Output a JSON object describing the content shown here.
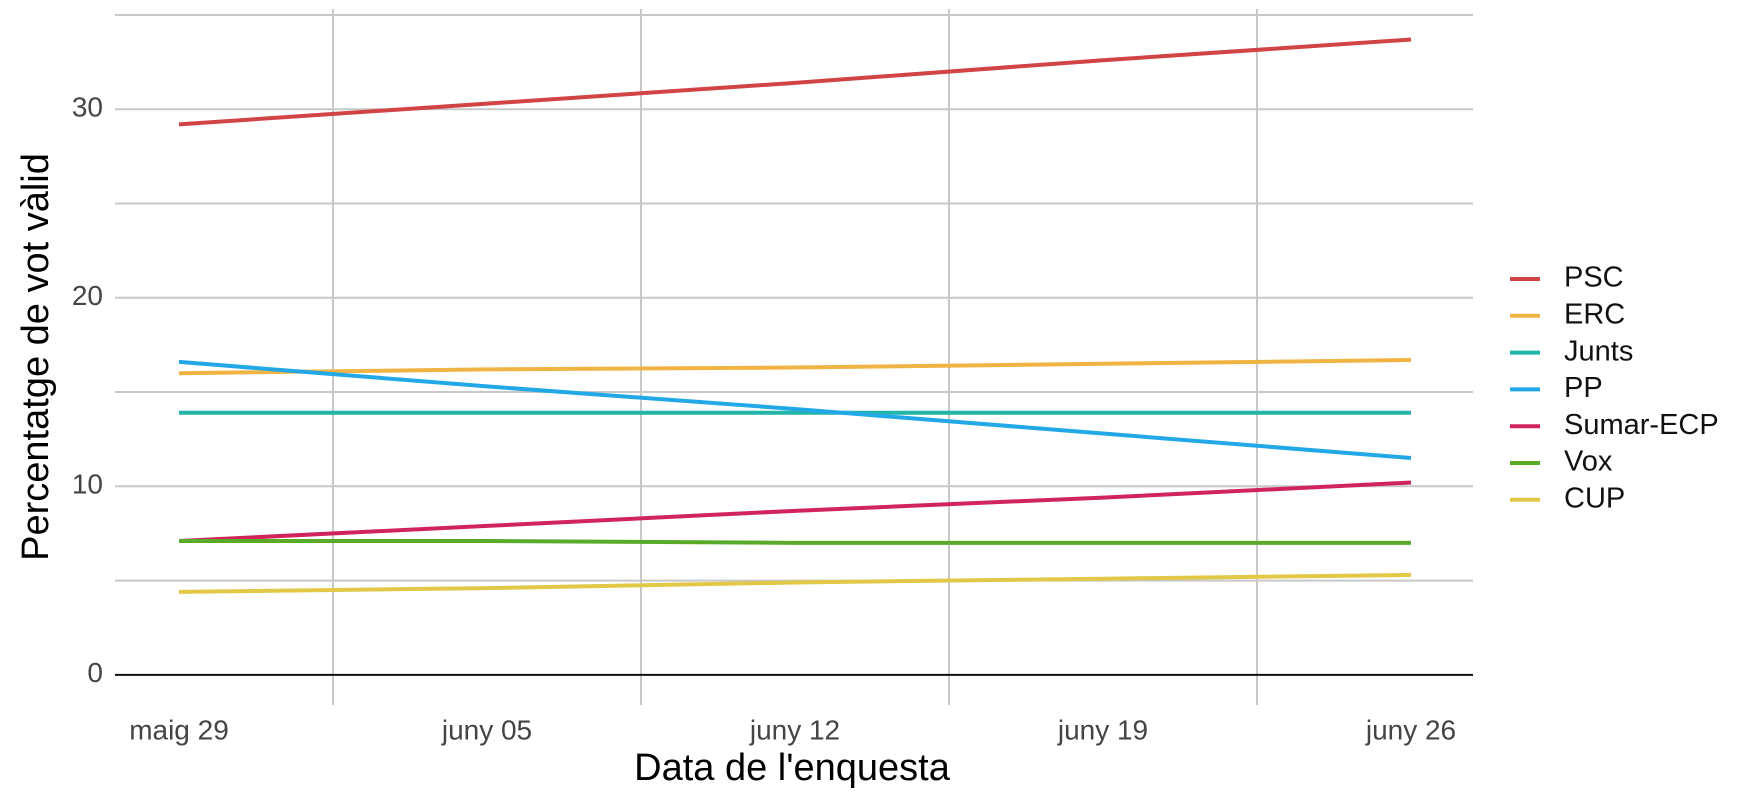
{
  "chart_data": {
    "type": "line",
    "x_label": "Data de l'enquesta",
    "y_label": "Percentatge de vot vàlid",
    "categories": [
      "maig 29",
      "juny 05",
      "juny 12",
      "juny 19",
      "juny 26"
    ],
    "series": [
      {
        "name": "PSC",
        "color": "#d04444",
        "values": [
          29.2,
          30.3,
          31.4,
          32.6,
          33.7
        ]
      },
      {
        "name": "ERC",
        "color": "#f0b444",
        "values": [
          16.0,
          16.2,
          16.3,
          16.5,
          16.7
        ]
      },
      {
        "name": "Junts",
        "color": "#22b4a8",
        "values": [
          13.9,
          13.9,
          13.9,
          13.9,
          13.9
        ]
      },
      {
        "name": "PP",
        "color": "#22a8e6",
        "values": [
          16.6,
          15.3,
          14.1,
          12.8,
          11.5
        ]
      },
      {
        "name": "Sumar-ECP",
        "color": "#d0245a",
        "values": [
          7.1,
          7.9,
          8.7,
          9.4,
          10.2
        ]
      },
      {
        "name": "Vox",
        "color": "#5aaa2a",
        "values": [
          7.1,
          7.1,
          7.0,
          7.0,
          7.0
        ]
      },
      {
        "name": "CUP",
        "color": "#e2c846",
        "values": [
          4.4,
          4.6,
          4.9,
          5.1,
          5.3
        ]
      }
    ],
    "ylim": [
      -1.6,
      35
    ],
    "yticks": [
      0,
      10,
      20,
      30
    ],
    "grid": true,
    "legend": "right"
  }
}
